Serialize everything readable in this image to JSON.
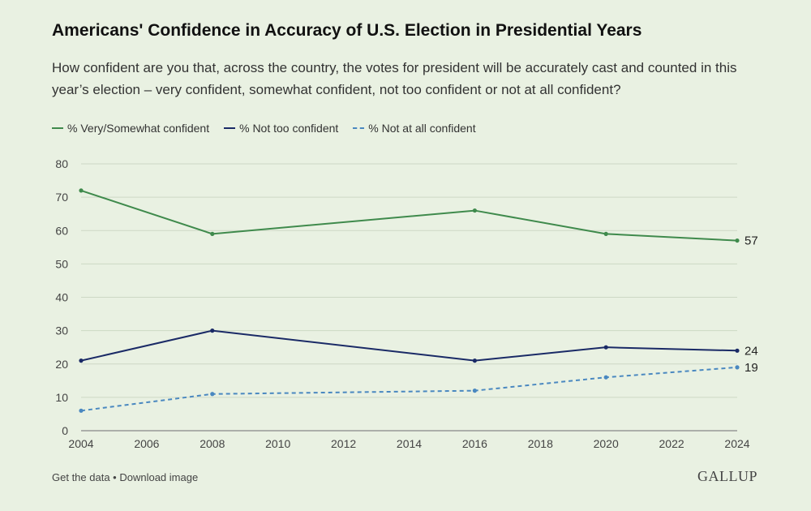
{
  "chart_data": {
    "type": "line",
    "title": "Americans' Confidence in Accuracy of U.S. Election in Presidential Years",
    "subtitle": "How confident are you that, across the country, the votes for president will be accurately cast and counted in this year’s election – very confident, somewhat confident, not too confident or not at all confident?",
    "x": [
      2004,
      2008,
      2016,
      2020,
      2024
    ],
    "series": [
      {
        "name": "% Very/Somewhat confident",
        "values": [
          72,
          59,
          66,
          59,
          57
        ],
        "color": "#3f8a4c",
        "dashed": false,
        "end_label": "57"
      },
      {
        "name": "% Not too confident",
        "values": [
          21,
          30,
          21,
          25,
          24
        ],
        "color": "#1a2a66",
        "dashed": false,
        "end_label": "24"
      },
      {
        "name": "% Not at all confident",
        "values": [
          6,
          11,
          12,
          16,
          19
        ],
        "color": "#4a88c0",
        "dashed": true,
        "end_label": "19"
      }
    ],
    "xlim": [
      2004,
      2024
    ],
    "xticks": [
      "2004",
      "2006",
      "2008",
      "2010",
      "2012",
      "2014",
      "2016",
      "2018",
      "2020",
      "2022",
      "2024"
    ],
    "ylim": [
      0,
      80
    ],
    "yticks": [
      "0",
      "10",
      "20",
      "30",
      "40",
      "50",
      "60",
      "70",
      "80"
    ],
    "xlabel": "",
    "ylabel": "",
    "grid": true,
    "legend_position": "top-left"
  },
  "footer": {
    "get_data": "Get the data",
    "separator": " • ",
    "download": "Download image",
    "logo": "GALLUP"
  }
}
